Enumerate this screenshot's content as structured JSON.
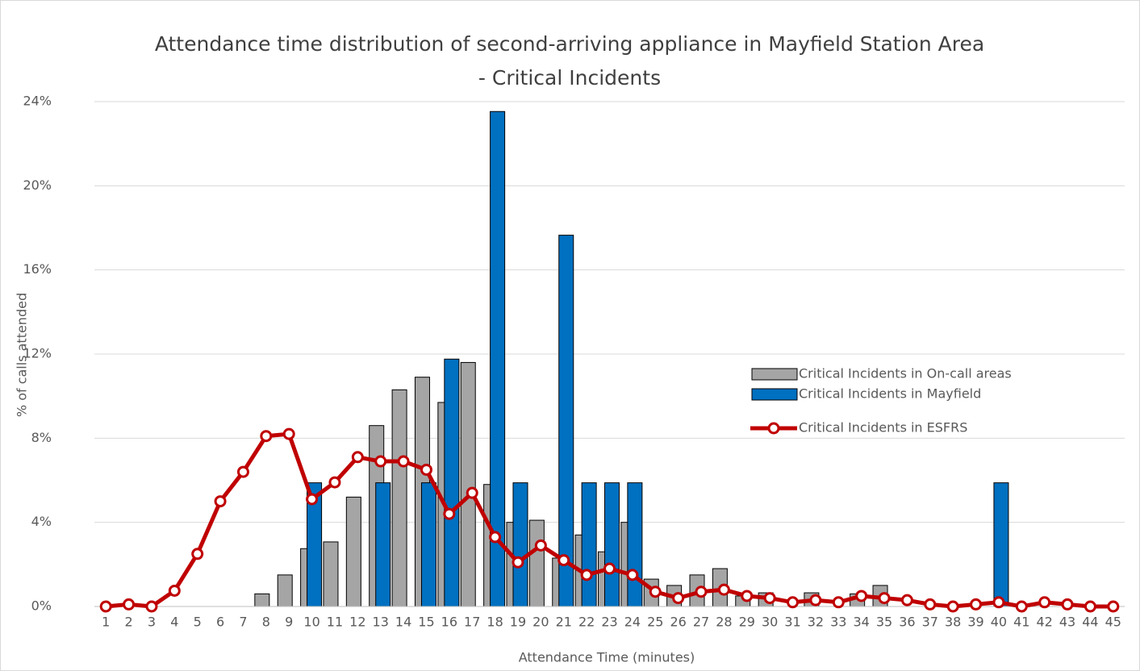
{
  "chart_data": {
    "type": "bar",
    "title": "Attendance time distribution of second-arriving appliance in Mayfield Station Area",
    "subtitle": "- Critical Incidents",
    "x_label": "Attendance Time (minutes)",
    "y_label": "% of calls attended",
    "categories": [
      "1",
      "2",
      "3",
      "4",
      "5",
      "6",
      "7",
      "8",
      "9",
      "10",
      "11",
      "12",
      "13",
      "14",
      "15",
      "16",
      "17",
      "18",
      "19",
      "20",
      "21",
      "22",
      "23",
      "24",
      "25",
      "26",
      "27",
      "28",
      "29",
      "30",
      "31",
      "32",
      "33",
      "34",
      "35",
      "36",
      "37",
      "38",
      "39",
      "40",
      "41",
      "42",
      "43",
      "44",
      "45"
    ],
    "series": [
      {
        "name": "Critical Incidents in On-call areas",
        "type": "bar",
        "color": "#a5a5a5",
        "values": [
          0,
          0,
          0,
          0,
          0,
          0,
          0,
          0.6,
          1.5,
          2.75,
          3.07,
          5.2,
          8.6,
          10.3,
          10.9,
          9.7,
          11.6,
          5.8,
          4.0,
          4.1,
          2.3,
          3.4,
          2.6,
          4.0,
          1.3,
          1.0,
          1.5,
          1.8,
          0.5,
          0.65,
          0,
          0.65,
          0,
          0.6,
          1.0,
          0,
          0,
          0,
          0,
          0,
          0,
          0,
          0,
          0,
          0
        ]
      },
      {
        "name": "Critical Incidents in Mayfield",
        "type": "bar",
        "color": "#0070c0",
        "values": [
          0,
          0,
          0,
          0,
          0,
          0,
          0,
          0,
          0,
          5.88,
          0,
          0,
          5.88,
          0,
          5.88,
          11.76,
          0,
          23.53,
          5.88,
          0,
          17.65,
          5.88,
          5.88,
          5.88,
          0,
          0,
          0,
          0,
          0,
          0,
          0,
          0,
          0,
          0,
          0,
          0,
          0,
          0,
          0,
          5.88,
          0,
          0,
          0,
          0,
          0
        ]
      },
      {
        "name": "Critical Incidents in ESFRS",
        "type": "line",
        "color": "#c00000",
        "values": [
          0,
          0.1,
          0,
          0.75,
          2.5,
          5.0,
          6.4,
          8.1,
          8.2,
          5.1,
          5.9,
          7.1,
          6.9,
          6.9,
          6.5,
          4.4,
          5.4,
          3.3,
          2.1,
          2.9,
          2.2,
          1.5,
          1.8,
          1.5,
          0.7,
          0.4,
          0.7,
          0.8,
          0.5,
          0.4,
          0.2,
          0.3,
          0.2,
          0.5,
          0.4,
          0.3,
          0.1,
          0,
          0.1,
          0.2,
          0,
          0.2,
          0.1,
          0,
          0
        ]
      }
    ],
    "ylim": [
      0,
      24
    ],
    "yticks": [
      {
        "value": 0,
        "label": "0%"
      },
      {
        "value": 4,
        "label": "4%"
      },
      {
        "value": 8,
        "label": "8%"
      },
      {
        "value": 12,
        "label": "12%"
      },
      {
        "value": 16,
        "label": "16%"
      },
      {
        "value": 20,
        "label": "20%"
      },
      {
        "value": 24,
        "label": "24%"
      }
    ],
    "grid": true,
    "legend": "right"
  }
}
